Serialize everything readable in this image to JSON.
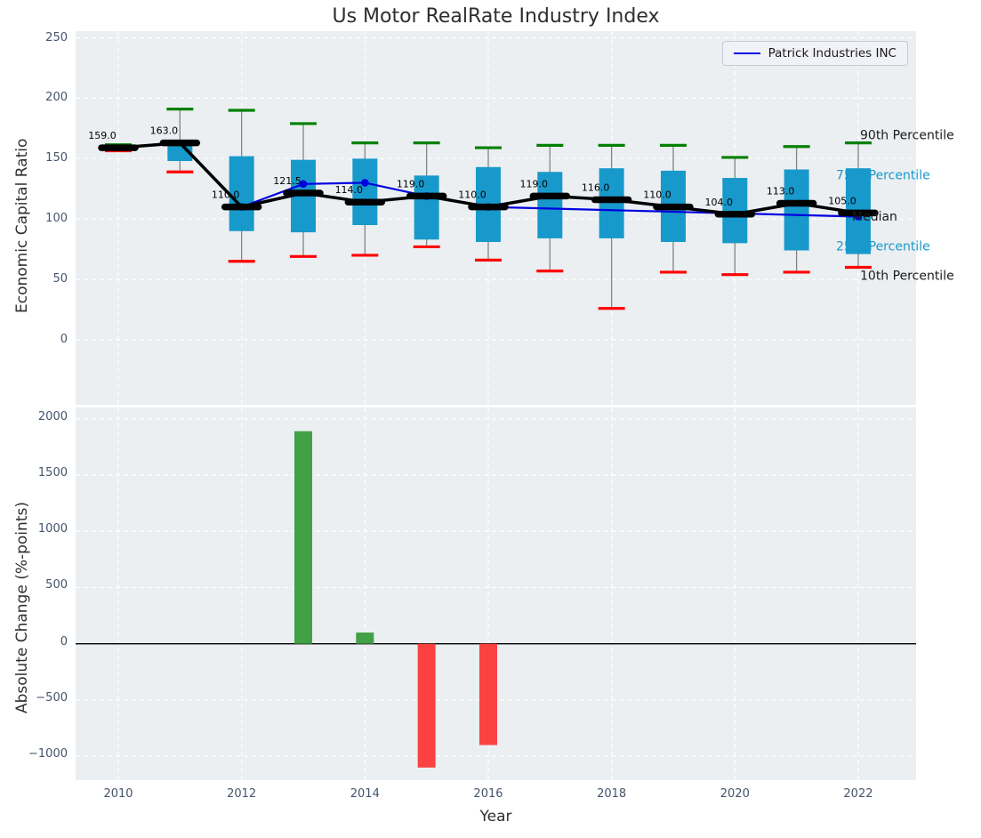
{
  "title": "Us Motor RealRate Industry Index",
  "colors": {
    "axes_background": "#ebeff1",
    "grid": "#ffffff",
    "box": "#1899cb",
    "p90_cap": "#008000",
    "p10_cap": "#fe0000",
    "median": "#000000",
    "company_line": "#0000e0",
    "bar_positive": "#43a047",
    "bar_negative": "#fc4141",
    "tick_label": "#44546a"
  },
  "chart_data": [
    {
      "type": "box-percentile-line",
      "title": "Us Motor RealRate Industry Index",
      "ylabel": "Economic Capital Ratio",
      "ylim": [
        -54,
        256
      ],
      "yticks": [
        0,
        50,
        100,
        150,
        200,
        250
      ],
      "ytick_labels": [
        "0",
        "50",
        "100",
        "150",
        "200",
        "250"
      ],
      "xticks": [
        2010,
        2012,
        2014,
        2016,
        2018,
        2020,
        2022
      ],
      "grid": true,
      "legend_position": "upper right",
      "boxes": [
        {
          "year": 2010,
          "p10": 156.5,
          "p25": 157.5,
          "median": 159.0,
          "p75": 160.5,
          "p90": 161.5,
          "label": "159.0"
        },
        {
          "year": 2011,
          "p10": 139,
          "p25": 148,
          "median": 163.0,
          "p75": 162.5,
          "p90": 191,
          "label": "163.0"
        },
        {
          "year": 2012,
          "p10": 65,
          "p25": 90,
          "median": 110.0,
          "p75": 152,
          "p90": 190,
          "label": "110.0"
        },
        {
          "year": 2013,
          "p10": 69,
          "p25": 89,
          "median": 121.5,
          "p75": 149,
          "p90": 179,
          "label": "121.5"
        },
        {
          "year": 2014,
          "p10": 70,
          "p25": 95,
          "median": 114.0,
          "p75": 150,
          "p90": 163,
          "label": "114.0"
        },
        {
          "year": 2015,
          "p10": 77,
          "p25": 83,
          "median": 119.0,
          "p75": 136,
          "p90": 163,
          "label": "119.0"
        },
        {
          "year": 2016,
          "p10": 66,
          "p25": 81,
          "median": 110.0,
          "p75": 143,
          "p90": 159,
          "label": "110.0"
        },
        {
          "year": 2017,
          "p10": 57,
          "p25": 84,
          "median": 119.0,
          "p75": 139,
          "p90": 161,
          "label": "119.0"
        },
        {
          "year": 2018,
          "p10": 26,
          "p25": 84,
          "median": 116.0,
          "p75": 142,
          "p90": 161,
          "label": "116.0"
        },
        {
          "year": 2019,
          "p10": 56,
          "p25": 81,
          "median": 110.0,
          "p75": 140,
          "p90": 161,
          "label": "110.0"
        },
        {
          "year": 2020,
          "p10": 54,
          "p25": 80,
          "median": 104.0,
          "p75": 134,
          "p90": 151,
          "label": "104.0"
        },
        {
          "year": 2021,
          "p10": 56,
          "p25": 74,
          "median": 113.0,
          "p75": 141,
          "p90": 160,
          "label": "113.0"
        },
        {
          "year": 2022,
          "p10": 60,
          "p25": 71,
          "median": 105.0,
          "p75": 142,
          "p90": 163,
          "label": "105.0"
        }
      ],
      "series": [
        {
          "name": "Patrick Industries INC",
          "points": [
            [
              2012,
              110
            ],
            [
              2013,
              129
            ],
            [
              2014,
              130
            ],
            [
              2015,
              119
            ],
            [
              2016,
              110
            ],
            [
              2022,
              102
            ]
          ]
        }
      ],
      "right_labels": [
        {
          "text": "90th Percentile",
          "color": "black"
        },
        {
          "text": "75th Percentile",
          "color": "cyan"
        },
        {
          "text": "Median",
          "color": "black"
        },
        {
          "text": "25th Percentile",
          "color": "cyan"
        },
        {
          "text": "10th Percentile",
          "color": "black"
        }
      ]
    },
    {
      "type": "bar",
      "xlabel": "Year",
      "ylabel": "Absolute Change (%-points)",
      "x": [
        2013,
        2014,
        2015,
        2016
      ],
      "values": [
        1890,
        100,
        -1100,
        -900
      ],
      "bar_colors": [
        "green",
        "green",
        "red",
        "red"
      ],
      "ylim": [
        -1212,
        2101
      ],
      "yticks": [
        2000,
        1500,
        1000,
        500,
        0,
        -500,
        -1000
      ],
      "ytick_labels": [
        "2000",
        "1500",
        "1000",
        "500",
        "0",
        "−500",
        "−1000"
      ],
      "xticks": [
        2010,
        2012,
        2014,
        2016,
        2018,
        2020,
        2022
      ],
      "xtick_labels": [
        "2010",
        "2012",
        "2014",
        "2016",
        "2018",
        "2020",
        "2022"
      ],
      "grid": true
    }
  ]
}
